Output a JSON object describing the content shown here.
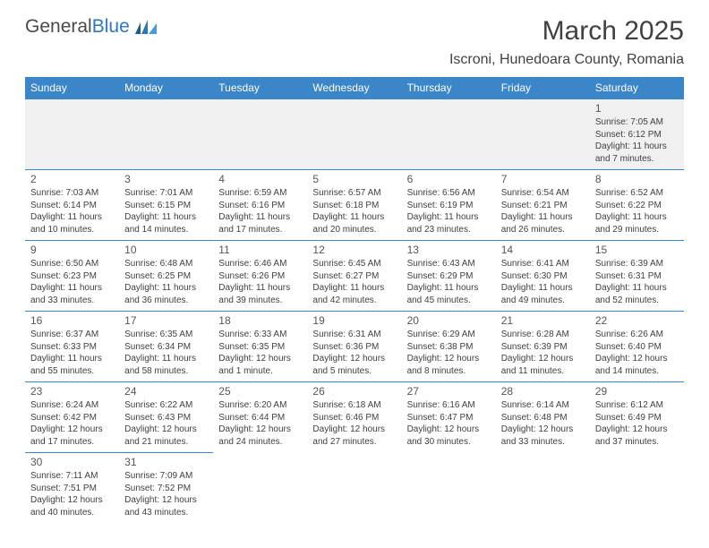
{
  "logo": {
    "part1": "General",
    "part2": "Blue"
  },
  "title": "March 2025",
  "location": "Iscroni, Hunedoara County, Romania",
  "colors": {
    "header_bg": "#3a86c8",
    "header_fg": "#ffffff",
    "rule": "#3a86c8",
    "text": "#3f3f3f",
    "title": "#414141",
    "empty_bg": "#f0f0f0",
    "logo_blue": "#2a78bd"
  },
  "day_headers": [
    "Sunday",
    "Monday",
    "Tuesday",
    "Wednesday",
    "Thursday",
    "Friday",
    "Saturday"
  ],
  "weeks": [
    [
      null,
      null,
      null,
      null,
      null,
      null,
      {
        "n": "1",
        "sr": "Sunrise: 7:05 AM",
        "ss": "Sunset: 6:12 PM",
        "d1": "Daylight: 11 hours",
        "d2": "and 7 minutes."
      }
    ],
    [
      {
        "n": "2",
        "sr": "Sunrise: 7:03 AM",
        "ss": "Sunset: 6:14 PM",
        "d1": "Daylight: 11 hours",
        "d2": "and 10 minutes."
      },
      {
        "n": "3",
        "sr": "Sunrise: 7:01 AM",
        "ss": "Sunset: 6:15 PM",
        "d1": "Daylight: 11 hours",
        "d2": "and 14 minutes."
      },
      {
        "n": "4",
        "sr": "Sunrise: 6:59 AM",
        "ss": "Sunset: 6:16 PM",
        "d1": "Daylight: 11 hours",
        "d2": "and 17 minutes."
      },
      {
        "n": "5",
        "sr": "Sunrise: 6:57 AM",
        "ss": "Sunset: 6:18 PM",
        "d1": "Daylight: 11 hours",
        "d2": "and 20 minutes."
      },
      {
        "n": "6",
        "sr": "Sunrise: 6:56 AM",
        "ss": "Sunset: 6:19 PM",
        "d1": "Daylight: 11 hours",
        "d2": "and 23 minutes."
      },
      {
        "n": "7",
        "sr": "Sunrise: 6:54 AM",
        "ss": "Sunset: 6:21 PM",
        "d1": "Daylight: 11 hours",
        "d2": "and 26 minutes."
      },
      {
        "n": "8",
        "sr": "Sunrise: 6:52 AM",
        "ss": "Sunset: 6:22 PM",
        "d1": "Daylight: 11 hours",
        "d2": "and 29 minutes."
      }
    ],
    [
      {
        "n": "9",
        "sr": "Sunrise: 6:50 AM",
        "ss": "Sunset: 6:23 PM",
        "d1": "Daylight: 11 hours",
        "d2": "and 33 minutes."
      },
      {
        "n": "10",
        "sr": "Sunrise: 6:48 AM",
        "ss": "Sunset: 6:25 PM",
        "d1": "Daylight: 11 hours",
        "d2": "and 36 minutes."
      },
      {
        "n": "11",
        "sr": "Sunrise: 6:46 AM",
        "ss": "Sunset: 6:26 PM",
        "d1": "Daylight: 11 hours",
        "d2": "and 39 minutes."
      },
      {
        "n": "12",
        "sr": "Sunrise: 6:45 AM",
        "ss": "Sunset: 6:27 PM",
        "d1": "Daylight: 11 hours",
        "d2": "and 42 minutes."
      },
      {
        "n": "13",
        "sr": "Sunrise: 6:43 AM",
        "ss": "Sunset: 6:29 PM",
        "d1": "Daylight: 11 hours",
        "d2": "and 45 minutes."
      },
      {
        "n": "14",
        "sr": "Sunrise: 6:41 AM",
        "ss": "Sunset: 6:30 PM",
        "d1": "Daylight: 11 hours",
        "d2": "and 49 minutes."
      },
      {
        "n": "15",
        "sr": "Sunrise: 6:39 AM",
        "ss": "Sunset: 6:31 PM",
        "d1": "Daylight: 11 hours",
        "d2": "and 52 minutes."
      }
    ],
    [
      {
        "n": "16",
        "sr": "Sunrise: 6:37 AM",
        "ss": "Sunset: 6:33 PM",
        "d1": "Daylight: 11 hours",
        "d2": "and 55 minutes."
      },
      {
        "n": "17",
        "sr": "Sunrise: 6:35 AM",
        "ss": "Sunset: 6:34 PM",
        "d1": "Daylight: 11 hours",
        "d2": "and 58 minutes."
      },
      {
        "n": "18",
        "sr": "Sunrise: 6:33 AM",
        "ss": "Sunset: 6:35 PM",
        "d1": "Daylight: 12 hours",
        "d2": "and 1 minute."
      },
      {
        "n": "19",
        "sr": "Sunrise: 6:31 AM",
        "ss": "Sunset: 6:36 PM",
        "d1": "Daylight: 12 hours",
        "d2": "and 5 minutes."
      },
      {
        "n": "20",
        "sr": "Sunrise: 6:29 AM",
        "ss": "Sunset: 6:38 PM",
        "d1": "Daylight: 12 hours",
        "d2": "and 8 minutes."
      },
      {
        "n": "21",
        "sr": "Sunrise: 6:28 AM",
        "ss": "Sunset: 6:39 PM",
        "d1": "Daylight: 12 hours",
        "d2": "and 11 minutes."
      },
      {
        "n": "22",
        "sr": "Sunrise: 6:26 AM",
        "ss": "Sunset: 6:40 PM",
        "d1": "Daylight: 12 hours",
        "d2": "and 14 minutes."
      }
    ],
    [
      {
        "n": "23",
        "sr": "Sunrise: 6:24 AM",
        "ss": "Sunset: 6:42 PM",
        "d1": "Daylight: 12 hours",
        "d2": "and 17 minutes."
      },
      {
        "n": "24",
        "sr": "Sunrise: 6:22 AM",
        "ss": "Sunset: 6:43 PM",
        "d1": "Daylight: 12 hours",
        "d2": "and 21 minutes."
      },
      {
        "n": "25",
        "sr": "Sunrise: 6:20 AM",
        "ss": "Sunset: 6:44 PM",
        "d1": "Daylight: 12 hours",
        "d2": "and 24 minutes."
      },
      {
        "n": "26",
        "sr": "Sunrise: 6:18 AM",
        "ss": "Sunset: 6:46 PM",
        "d1": "Daylight: 12 hours",
        "d2": "and 27 minutes."
      },
      {
        "n": "27",
        "sr": "Sunrise: 6:16 AM",
        "ss": "Sunset: 6:47 PM",
        "d1": "Daylight: 12 hours",
        "d2": "and 30 minutes."
      },
      {
        "n": "28",
        "sr": "Sunrise: 6:14 AM",
        "ss": "Sunset: 6:48 PM",
        "d1": "Daylight: 12 hours",
        "d2": "and 33 minutes."
      },
      {
        "n": "29",
        "sr": "Sunrise: 6:12 AM",
        "ss": "Sunset: 6:49 PM",
        "d1": "Daylight: 12 hours",
        "d2": "and 37 minutes."
      }
    ],
    [
      {
        "n": "30",
        "sr": "Sunrise: 7:11 AM",
        "ss": "Sunset: 7:51 PM",
        "d1": "Daylight: 12 hours",
        "d2": "and 40 minutes."
      },
      {
        "n": "31",
        "sr": "Sunrise: 7:09 AM",
        "ss": "Sunset: 7:52 PM",
        "d1": "Daylight: 12 hours",
        "d2": "and 43 minutes."
      },
      null,
      null,
      null,
      null,
      null
    ]
  ]
}
